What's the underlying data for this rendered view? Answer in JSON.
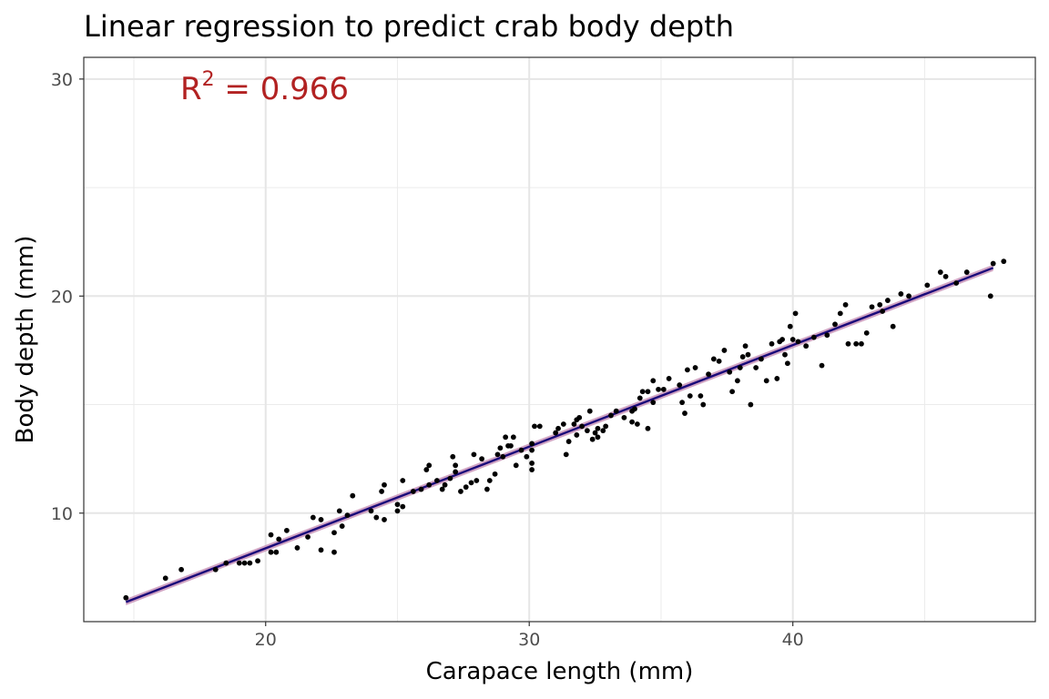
{
  "chart_data": {
    "type": "scatter",
    "title": "Linear regression to predict crab body depth",
    "xlabel": "Carapace length (mm)",
    "ylabel": "Body depth (mm)",
    "xlim": [
      13.1,
      49.2
    ],
    "ylim": [
      5.0,
      31.0
    ],
    "x_ticks": [
      20,
      30,
      40
    ],
    "y_ticks": [
      10,
      20,
      30
    ],
    "grid": true,
    "annotation": {
      "base": "R",
      "superscript": "2",
      "rest": " = 0.966",
      "color": "#b22222"
    },
    "fit_line": {
      "x": [
        14.7,
        47.6
      ],
      "y": [
        5.9,
        21.3
      ],
      "color": "#1a0a7a",
      "band_color": "#c994b8"
    },
    "points": [
      [
        14.7,
        6.1
      ],
      [
        16.2,
        7.0
      ],
      [
        16.8,
        7.4
      ],
      [
        18.1,
        7.4
      ],
      [
        18.5,
        7.7
      ],
      [
        19.0,
        7.7
      ],
      [
        19.2,
        7.7
      ],
      [
        19.4,
        7.7
      ],
      [
        19.7,
        7.8
      ],
      [
        20.2,
        8.2
      ],
      [
        20.4,
        8.2
      ],
      [
        20.2,
        9.0
      ],
      [
        20.5,
        8.8
      ],
      [
        20.8,
        9.2
      ],
      [
        21.2,
        8.4
      ],
      [
        21.6,
        8.9
      ],
      [
        21.8,
        9.8
      ],
      [
        22.1,
        9.7
      ],
      [
        22.1,
        8.3
      ],
      [
        22.6,
        8.2
      ],
      [
        22.6,
        9.1
      ],
      [
        22.8,
        10.1
      ],
      [
        22.9,
        9.4
      ],
      [
        23.1,
        9.9
      ],
      [
        23.3,
        10.8
      ],
      [
        24.0,
        10.1
      ],
      [
        24.2,
        9.8
      ],
      [
        24.4,
        11.0
      ],
      [
        24.5,
        9.7
      ],
      [
        24.5,
        11.3
      ],
      [
        25.0,
        10.1
      ],
      [
        25.0,
        10.4
      ],
      [
        25.2,
        10.3
      ],
      [
        25.2,
        11.5
      ],
      [
        25.6,
        11.0
      ],
      [
        25.9,
        11.1
      ],
      [
        26.1,
        12.0
      ],
      [
        26.2,
        11.3
      ],
      [
        26.2,
        12.2
      ],
      [
        26.5,
        11.5
      ],
      [
        26.7,
        11.1
      ],
      [
        26.8,
        11.3
      ],
      [
        27.0,
        11.6
      ],
      [
        27.1,
        12.6
      ],
      [
        27.2,
        12.2
      ],
      [
        27.2,
        11.9
      ],
      [
        27.4,
        11.0
      ],
      [
        27.6,
        11.2
      ],
      [
        27.8,
        11.4
      ],
      [
        27.9,
        12.7
      ],
      [
        28.0,
        11.5
      ],
      [
        28.2,
        12.5
      ],
      [
        28.4,
        11.1
      ],
      [
        28.5,
        11.5
      ],
      [
        28.7,
        11.8
      ],
      [
        28.8,
        12.7
      ],
      [
        28.9,
        13.0
      ],
      [
        29.0,
        12.6
      ],
      [
        29.1,
        13.5
      ],
      [
        29.2,
        13.1
      ],
      [
        29.3,
        13.1
      ],
      [
        29.4,
        13.5
      ],
      [
        29.5,
        12.2
      ],
      [
        29.7,
        12.9
      ],
      [
        29.9,
        12.6
      ],
      [
        30.1,
        12.9
      ],
      [
        30.1,
        13.2
      ],
      [
        30.1,
        12.3
      ],
      [
        30.1,
        12.0
      ],
      [
        30.2,
        14.0
      ],
      [
        30.4,
        14.0
      ],
      [
        31.0,
        13.7
      ],
      [
        31.1,
        13.9
      ],
      [
        31.3,
        14.1
      ],
      [
        31.4,
        12.7
      ],
      [
        31.5,
        13.3
      ],
      [
        31.7,
        14.1
      ],
      [
        31.8,
        13.6
      ],
      [
        31.8,
        14.3
      ],
      [
        31.9,
        14.4
      ],
      [
        32.0,
        14.0
      ],
      [
        32.2,
        13.8
      ],
      [
        32.3,
        14.7
      ],
      [
        32.4,
        13.4
      ],
      [
        32.5,
        13.7
      ],
      [
        32.6,
        13.9
      ],
      [
        32.6,
        13.5
      ],
      [
        32.8,
        13.8
      ],
      [
        32.9,
        14.0
      ],
      [
        33.1,
        14.5
      ],
      [
        33.3,
        14.7
      ],
      [
        33.6,
        14.4
      ],
      [
        33.9,
        14.2
      ],
      [
        33.9,
        14.7
      ],
      [
        34.0,
        14.8
      ],
      [
        34.1,
        14.1
      ],
      [
        34.2,
        15.3
      ],
      [
        34.3,
        15.6
      ],
      [
        34.5,
        15.6
      ],
      [
        34.5,
        13.9
      ],
      [
        34.7,
        16.1
      ],
      [
        34.7,
        15.1
      ],
      [
        34.9,
        15.7
      ],
      [
        35.1,
        15.7
      ],
      [
        35.3,
        16.2
      ],
      [
        35.7,
        15.9
      ],
      [
        35.8,
        15.1
      ],
      [
        35.9,
        14.6
      ],
      [
        36.0,
        16.6
      ],
      [
        36.1,
        15.4
      ],
      [
        36.3,
        16.7
      ],
      [
        36.5,
        15.4
      ],
      [
        36.6,
        15.0
      ],
      [
        36.8,
        16.4
      ],
      [
        37.0,
        17.1
      ],
      [
        37.2,
        17.0
      ],
      [
        37.4,
        17.5
      ],
      [
        37.6,
        16.5
      ],
      [
        37.7,
        15.6
      ],
      [
        37.9,
        16.1
      ],
      [
        38.0,
        16.7
      ],
      [
        38.1,
        17.2
      ],
      [
        38.2,
        17.7
      ],
      [
        38.3,
        17.3
      ],
      [
        38.4,
        15.0
      ],
      [
        38.6,
        16.7
      ],
      [
        38.8,
        17.1
      ],
      [
        39.0,
        16.1
      ],
      [
        39.2,
        17.8
      ],
      [
        39.4,
        16.2
      ],
      [
        39.5,
        17.9
      ],
      [
        39.6,
        18.0
      ],
      [
        39.7,
        17.3
      ],
      [
        39.8,
        16.9
      ],
      [
        39.9,
        18.6
      ],
      [
        40.0,
        18.0
      ],
      [
        40.1,
        19.2
      ],
      [
        40.2,
        17.9
      ],
      [
        40.5,
        17.7
      ],
      [
        40.8,
        18.1
      ],
      [
        41.1,
        16.8
      ],
      [
        41.3,
        18.2
      ],
      [
        41.6,
        18.7
      ],
      [
        41.8,
        19.2
      ],
      [
        42.0,
        19.6
      ],
      [
        42.1,
        17.8
      ],
      [
        42.4,
        17.8
      ],
      [
        42.6,
        17.8
      ],
      [
        42.8,
        18.3
      ],
      [
        43.0,
        19.5
      ],
      [
        43.3,
        19.6
      ],
      [
        43.4,
        19.3
      ],
      [
        43.6,
        19.8
      ],
      [
        43.8,
        18.6
      ],
      [
        44.1,
        20.1
      ],
      [
        44.4,
        20.0
      ],
      [
        45.1,
        20.5
      ],
      [
        45.6,
        21.1
      ],
      [
        45.8,
        20.9
      ],
      [
        46.2,
        20.6
      ],
      [
        46.6,
        21.1
      ],
      [
        47.5,
        20.0
      ],
      [
        47.6,
        21.5
      ],
      [
        48.0,
        21.6
      ]
    ]
  }
}
